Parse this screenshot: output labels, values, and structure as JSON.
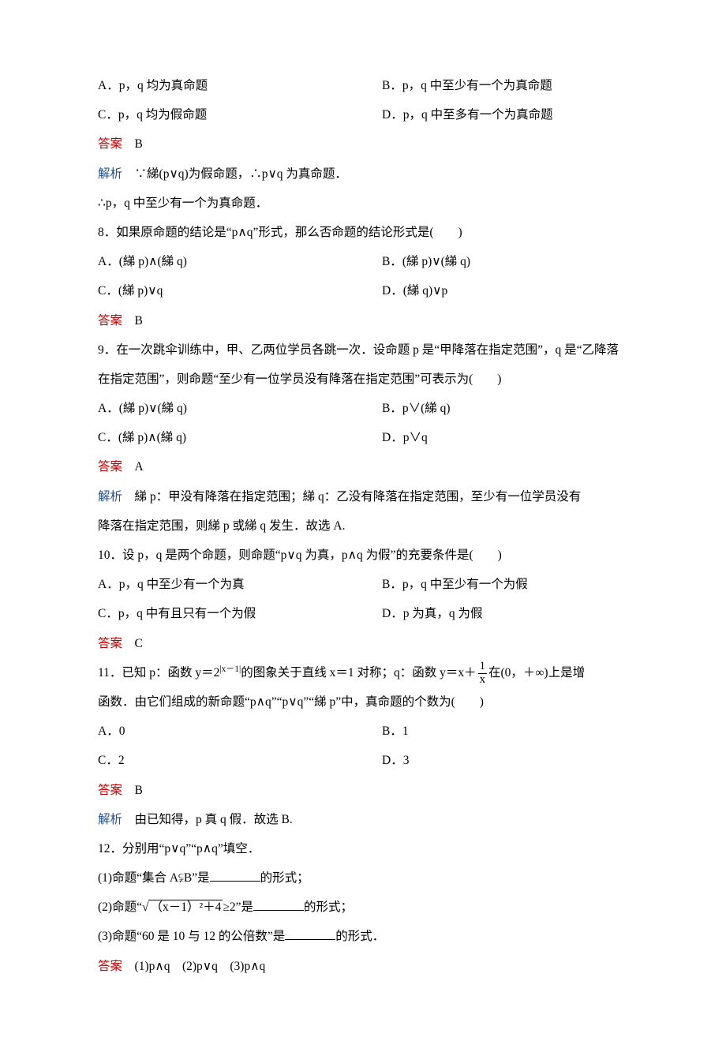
{
  "colors": {
    "answer": "#c00000",
    "explain": "#205090",
    "text": "#000000",
    "bg": "#ffffff"
  },
  "q7": {
    "choices": {
      "A": "A．p，q 均为真命题",
      "B": "B．p，q 中至少有一个为真命题",
      "C": "C．p，q 均为假命题",
      "D": "D．p，q 中至多有一个为真命题"
    },
    "answer_label": "答案",
    "answer": "B",
    "explain_label": "解析",
    "explain1": "∵綈(p∨q)为假命题，∴p∨q 为真命题．",
    "explain2": "∴p，q 中至少有一个为真命题．"
  },
  "q8": {
    "stem": "8．如果原命题的结论是“p∧q”形式，那么否命题的结论形式是(　　)",
    "choices": {
      "A": "A．(綈 p)∧(綈 q)",
      "B": "B．(綈 p)∨(綈 q)",
      "C": "C．(綈 p)∨q",
      "D": "D．(綈 q)∨p"
    },
    "answer_label": "答案",
    "answer": "B"
  },
  "q9": {
    "stem": "9．在一次跳伞训练中，甲、乙两位学员各跳一次．设命题 p 是“甲降落在指定范围”，q 是“乙降落在指定范围”，则命题“至少有一位学员没有降落在指定范围”可表示为(　　)",
    "choices": {
      "A": "A．(綈 p)∨(綈 q)",
      "B": "B．p∨(綈 q)",
      "C": "C．(綈 p)∧(綈 q)",
      "D": "D．p∨q"
    },
    "answer_label": "答案",
    "answer": "A",
    "explain_label": "解析",
    "explain1": "綈 p：甲没有降落在指定范围；綈 q：乙没有降落在指定范围，至少有一位学员没有",
    "explain2": "降落在指定范围，则綈 p 或綈 q 发生．故选 A."
  },
  "q10": {
    "stem": "10．设 p，q 是两个命题，则命题“p∨q 为真，p∧q 为假”的充要条件是(　　)",
    "choices": {
      "A": "A．p，q 中至少有一个为真",
      "B": "B．p，q 中至少有一个为假",
      "C": "C．p，q 中有且只有一个为假",
      "D": "D．p 为真，q 为假"
    },
    "answer_label": "答案",
    "answer": "C"
  },
  "q11": {
    "stem_prefix": "11．已知 p：函数 y＝2",
    "stem_sup": "|x－1|",
    "stem_mid": "的图象关于直线 x＝1 对称；q：函数 y＝x＋",
    "frac_num": "1",
    "frac_den": "x",
    "stem_tail": "在(0，＋∞)上是增",
    "stem_line2": "函数．由它们组成的新命题“p∧q”“p∨q”“綈 p”中，真命题的个数为(　　)",
    "choices": {
      "A": "A．0",
      "B": "B．1",
      "C": "C．2",
      "D": "D．3"
    },
    "answer_label": "答案",
    "answer": "B",
    "explain_label": "解析",
    "explain": "由已知得，p 真 q 假．故选 B."
  },
  "q12": {
    "stem": "12．分别用“p∨q”“p∧q”填空．",
    "part1_pre": "(1)命题“集合 A⫋B”是",
    "part_suffix": "的形式；",
    "part2_pre": "(2)命题“",
    "part2_sqrt_inner": "（x－1）²＋4",
    "part2_after": "≥2”是",
    "part3_pre": "(3)命题“60 是 10 与 12 的公倍数”是",
    "part3_suffix": "的形式．",
    "answer_label": "答案",
    "answer": "(1)p∧q　(2)p∨q　(3)p∧q"
  }
}
